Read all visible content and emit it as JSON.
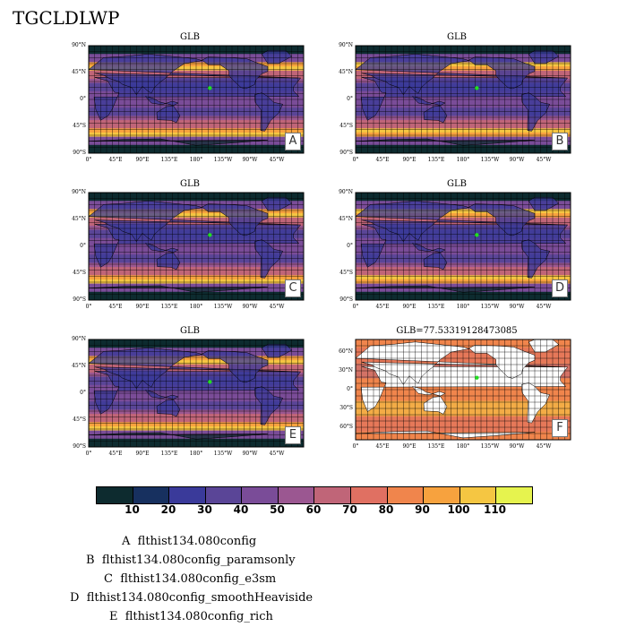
{
  "title": "TGCLDLWP",
  "panels": [
    {
      "id": "A",
      "title": "GLB",
      "config": "flthist134.080config"
    },
    {
      "id": "B",
      "title": "GLB",
      "config": "flthist134.080config_paramsonly"
    },
    {
      "id": "C",
      "title": "GLB",
      "config": "flthist134.080config_e3sm"
    },
    {
      "id": "D",
      "title": "GLB",
      "config": "flthist134.080config_smoothHeaviside"
    },
    {
      "id": "E",
      "title": "GLB",
      "config": "flthist134.080config_rich"
    },
    {
      "id": "F",
      "title": "GLB=77.53319128473085"
    }
  ],
  "lat_labels": [
    "90°N",
    "45°N",
    "0°",
    "45°S",
    "90°S"
  ],
  "lat_labels_f": [
    "60°N",
    "30°N",
    "0°",
    "30°S",
    "60°S"
  ],
  "lon_labels": [
    "0°",
    "45°E",
    "90°E",
    "135°E",
    "180°",
    "135°W",
    "90°W",
    "45°W"
  ],
  "colorbar": {
    "colors": [
      "#0d2b2f",
      "#17305f",
      "#3a3a9a",
      "#5a4597",
      "#7a4c98",
      "#9b5791",
      "#c06578",
      "#e07062",
      "#f0854c",
      "#f7a23e",
      "#f5c642",
      "#e6f34e"
    ],
    "labels": [
      "10",
      "20",
      "30",
      "40",
      "50",
      "60",
      "70",
      "80",
      "90",
      "100",
      "110"
    ]
  },
  "legend": [
    {
      "letter": "A",
      "name": "flthist134.080config"
    },
    {
      "letter": "B",
      "name": "flthist134.080config_paramsonly"
    },
    {
      "letter": "C",
      "name": "flthist134.080config_e3sm"
    },
    {
      "letter": "D",
      "name": "flthist134.080config_smoothHeaviside"
    },
    {
      "letter": "E",
      "name": "flthist134.080config_rich"
    }
  ],
  "marker_color": "#22dd22"
}
